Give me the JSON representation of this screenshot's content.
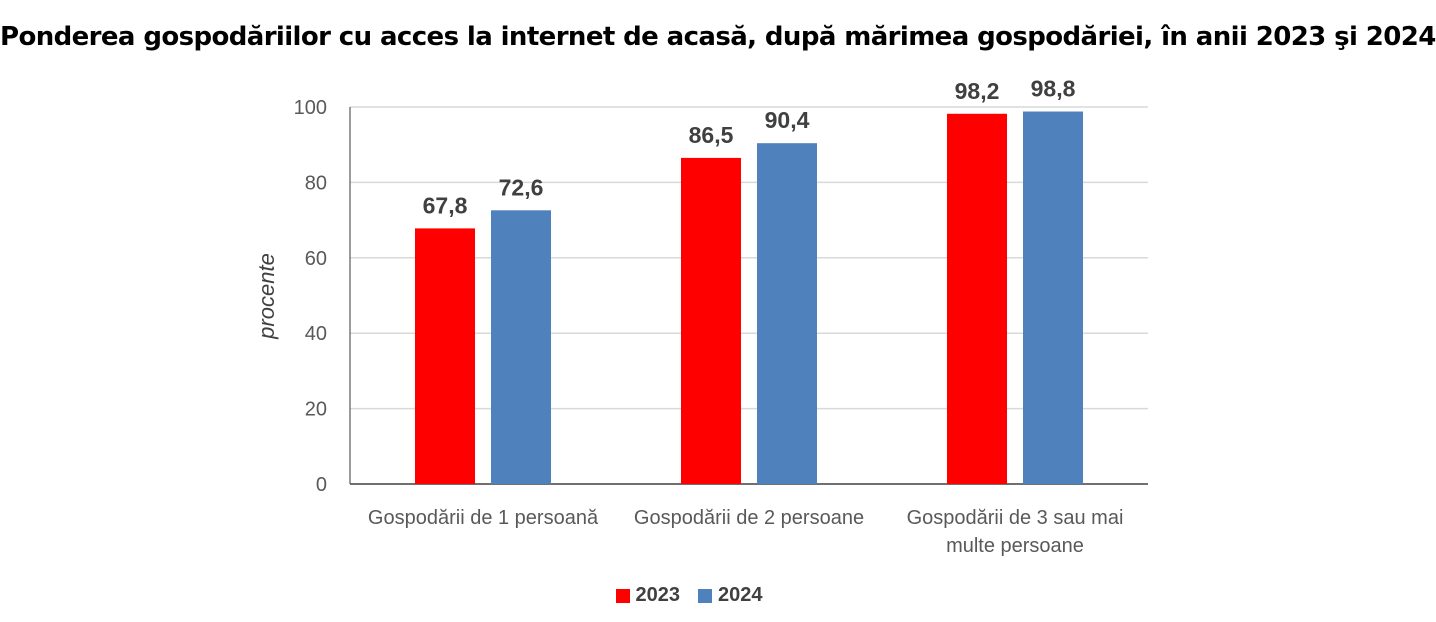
{
  "chart_data": {
    "type": "bar",
    "title": "Ponderea gospodăriilor cu acces la internet de acasă, după mărimea gospodăriei, în anii 2023 şi 2024",
    "ylabel": "procente",
    "xlabel": "",
    "ylim": [
      0,
      100
    ],
    "yticks": [
      "0",
      "20",
      "40",
      "60",
      "80",
      "100"
    ],
    "grid": true,
    "legend_position": "bottom",
    "categories": [
      [
        "Gospodării de 1 persoană"
      ],
      [
        "Gospodării de 2 persoane"
      ],
      [
        "Gospodării de 3 sau mai",
        "multe persoane"
      ]
    ],
    "series": [
      {
        "name": "2023",
        "color": "#FF0000",
        "values": [
          67.8,
          86.5,
          98.2
        ],
        "labels": [
          "67,8",
          "86,5",
          "98,2"
        ]
      },
      {
        "name": "2024",
        "color": "#4F81BD",
        "values": [
          72.6,
          90.4,
          98.8
        ],
        "labels": [
          "72,6",
          "90,4",
          "98,8"
        ]
      }
    ]
  }
}
